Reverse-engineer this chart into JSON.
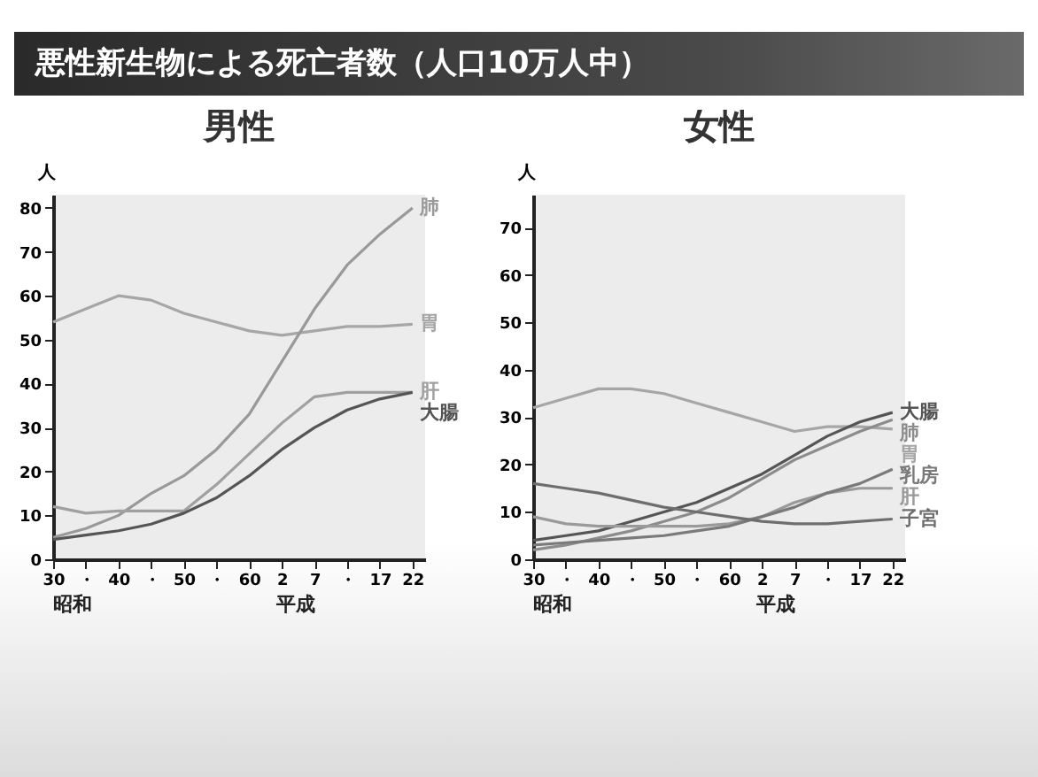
{
  "chart_data": [
    {
      "type": "other",
      "title": "悪性新生物による死亡者数（人口10万人中）"
    },
    {
      "type": "line",
      "title": "男性",
      "ylabel": "人",
      "categories": [
        "30",
        "・",
        "40",
        "・",
        "50",
        "・",
        "60",
        "2",
        "7",
        "・",
        "17",
        "22"
      ],
      "ylim": [
        0,
        83
      ],
      "yticks": [
        0,
        10,
        20,
        30,
        40,
        50,
        60,
        70,
        80
      ],
      "series": [
        {
          "name": "胃",
          "color": "#a6a6a6",
          "values": [
            54,
            57,
            60,
            59,
            56,
            54,
            52,
            51,
            52,
            53,
            53,
            53.5
          ]
        },
        {
          "name": "肺",
          "color": "#999999",
          "values": [
            5,
            7,
            10,
            15,
            19,
            25,
            33,
            45,
            57,
            67,
            74,
            80
          ]
        },
        {
          "name": "肝",
          "color": "#a0a0a0",
          "values": [
            12,
            10.5,
            11,
            11,
            11,
            17,
            24,
            31,
            37,
            38,
            38,
            38
          ]
        },
        {
          "name": "大腸",
          "color": "#555555",
          "values": [
            4.5,
            5.5,
            6.5,
            8,
            10.5,
            14,
            19,
            25,
            30,
            34,
            36.5,
            38
          ]
        }
      ],
      "annotations": [
        "昭和",
        "平成"
      ]
    },
    {
      "type": "line",
      "title": "女性",
      "ylabel": "人",
      "categories": [
        "30",
        "・",
        "40",
        "・",
        "50",
        "・",
        "60",
        "2",
        "7",
        "・",
        "17",
        "22"
      ],
      "ylim": [
        0,
        77
      ],
      "yticks": [
        0,
        10,
        20,
        30,
        40,
        50,
        60,
        70
      ],
      "series": [
        {
          "name": "胃",
          "color": "#a6a6a6",
          "values": [
            32,
            34,
            36,
            36,
            35,
            33,
            31,
            29,
            27,
            28,
            28,
            27.5
          ]
        },
        {
          "name": "大腸",
          "color": "#555555",
          "values": [
            4,
            5,
            6,
            8,
            10,
            12,
            15,
            18,
            22,
            26,
            29,
            31
          ]
        },
        {
          "name": "肺",
          "color": "#8c8c8c",
          "values": [
            2,
            3,
            4.5,
            6,
            8,
            10,
            13,
            17,
            21,
            24,
            27,
            29.5
          ]
        },
        {
          "name": "肝",
          "color": "#9a9a9a",
          "values": [
            9,
            7.5,
            7,
            7,
            7,
            7,
            7.5,
            9,
            12,
            14,
            15,
            15
          ]
        },
        {
          "name": "乳房",
          "color": "#7a7a7a",
          "values": [
            3,
            3.5,
            4,
            4.5,
            5,
            6,
            7,
            9,
            11,
            14,
            16,
            19
          ]
        },
        {
          "name": "子宮",
          "color": "#6e6e6e",
          "values": [
            16,
            15,
            14,
            12.5,
            11,
            10,
            9,
            8,
            7.5,
            7.5,
            8,
            8.5
          ]
        }
      ],
      "annotations": [
        "昭和",
        "平成"
      ]
    }
  ]
}
